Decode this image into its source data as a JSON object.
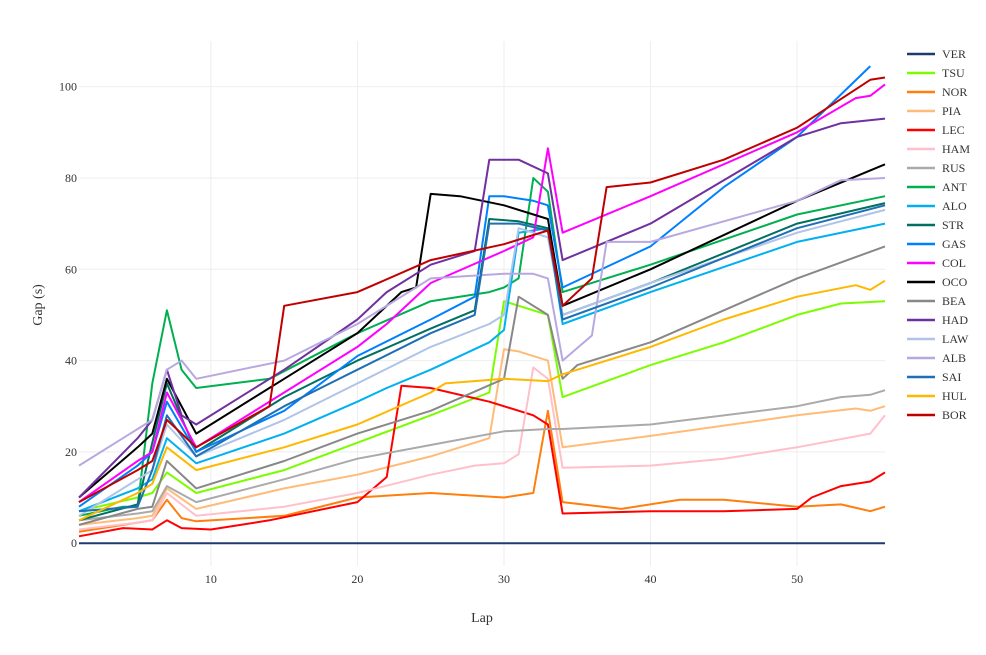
{
  "chart_data": {
    "type": "line",
    "title": "",
    "xlabel": "Lap",
    "ylabel": "Gap (s)",
    "xlim": [
      1,
      56
    ],
    "ylim": [
      -5,
      110
    ],
    "xticks": [
      10,
      20,
      30,
      40,
      50
    ],
    "yticks": [
      0,
      20,
      40,
      60,
      80,
      100
    ],
    "grid": true,
    "legend_placement": "right",
    "series": [
      {
        "name": "VER",
        "color": "#1f3a6e",
        "x": [
          1,
          56
        ],
        "y": [
          0,
          0
        ]
      },
      {
        "name": "TSU",
        "color": "#7cfc00",
        "x": [
          1,
          5,
          6,
          7,
          9,
          15,
          20,
          25,
          29,
          30,
          33,
          34,
          40,
          45,
          50,
          53,
          56
        ],
        "y": [
          7,
          10,
          11,
          15.5,
          11,
          16,
          22,
          28,
          33,
          53,
          50,
          32,
          39,
          44,
          50,
          52.5,
          53
        ]
      },
      {
        "name": "NOR",
        "color": "#ff7f0e",
        "x": [
          1,
          5,
          6,
          7,
          8,
          9,
          15,
          20,
          25,
          30,
          32,
          33,
          34,
          38,
          42,
          45,
          50,
          53,
          55,
          56
        ],
        "y": [
          2.5,
          4.5,
          5,
          9.5,
          5.5,
          4.8,
          6,
          10,
          11,
          10,
          11,
          29,
          9,
          7.5,
          9.5,
          9.5,
          8,
          8.5,
          7,
          8
        ]
      },
      {
        "name": "PIA",
        "color": "#ffbb78",
        "x": [
          1,
          5,
          6,
          7,
          9,
          15,
          20,
          25,
          29,
          30,
          31,
          33,
          34,
          40,
          50,
          54,
          55,
          56
        ],
        "y": [
          4,
          5.5,
          6,
          12,
          7.5,
          12,
          15,
          19,
          23,
          42.5,
          42,
          40,
          21,
          23.5,
          28,
          29.5,
          29,
          30
        ]
      },
      {
        "name": "LEC",
        "color": "#ff0000",
        "x": [
          1,
          4,
          6,
          7,
          8,
          10,
          14,
          20,
          22,
          23,
          25,
          29,
          32,
          33,
          34,
          40,
          45,
          50,
          51,
          53,
          55,
          56
        ],
        "y": [
          1.5,
          3.3,
          3,
          5,
          3.3,
          3,
          5,
          9,
          14.5,
          34.5,
          34,
          31,
          28,
          26,
          6.5,
          7,
          7,
          7.5,
          10,
          12.5,
          13.5,
          15.5
        ]
      },
      {
        "name": "HAM",
        "color": "#ffc0cb",
        "x": [
          1,
          5,
          6,
          7,
          9,
          15,
          20,
          25,
          28,
          30,
          31,
          32,
          33,
          34,
          40,
          45,
          50,
          55,
          56
        ],
        "y": [
          3,
          4.5,
          5,
          11,
          6,
          8,
          11,
          15,
          17,
          17.5,
          19.5,
          38.5,
          36,
          16.5,
          17,
          18.5,
          21,
          24,
          28
        ]
      },
      {
        "name": "RUS",
        "color": "#aaaaaa",
        "x": [
          1,
          5,
          6,
          7,
          9,
          15,
          20,
          25,
          30,
          33,
          34,
          40,
          50,
          53,
          55,
          56
        ],
        "y": [
          5,
          6.5,
          7,
          12.5,
          9,
          14,
          18.5,
          21.5,
          24.5,
          25,
          25,
          26,
          30,
          32,
          32.5,
          33.5
        ]
      },
      {
        "name": "ANT",
        "color": "#00b050",
        "x": [
          1,
          4,
          5,
          6,
          7,
          8,
          9,
          14,
          20,
          25,
          29,
          30,
          31,
          32,
          33,
          34,
          40,
          50,
          56
        ],
        "y": [
          6,
          8,
          8,
          35,
          51,
          38,
          34,
          36,
          46,
          53,
          55,
          56,
          58,
          80,
          77,
          55,
          61,
          72,
          76
        ]
      },
      {
        "name": "ALO",
        "color": "#00b0f0",
        "x": [
          1,
          5,
          6,
          7,
          9,
          15,
          20,
          22,
          25,
          29,
          30,
          31,
          33,
          34,
          40,
          50,
          56
        ],
        "y": [
          7,
          12,
          14,
          23,
          17.5,
          24,
          31,
          34,
          38,
          44,
          46.7,
          68,
          69,
          48,
          55,
          66,
          70
        ]
      },
      {
        "name": "STR",
        "color": "#007060",
        "x": [
          1,
          5,
          6,
          7,
          9,
          15,
          20,
          25,
          28,
          29,
          31,
          33,
          34,
          40,
          50,
          56
        ],
        "y": [
          5,
          8.5,
          22,
          35,
          20,
          32,
          40,
          47,
          51,
          71,
          70.5,
          69,
          50,
          57,
          70,
          74.5
        ]
      },
      {
        "name": "GAS",
        "color": "#0080ff",
        "x": [
          1,
          5,
          6,
          7,
          9,
          15,
          20,
          25,
          28,
          29,
          30,
          32,
          33,
          34,
          40,
          45,
          50,
          55
        ],
        "y": [
          8,
          17,
          20,
          31,
          20,
          29,
          41,
          49,
          54,
          76,
          76,
          75,
          74,
          56,
          65,
          78,
          89,
          104.5
        ]
      },
      {
        "name": "COL",
        "color": "#ff00ff",
        "x": [
          1,
          5,
          6,
          7,
          9,
          15,
          20,
          22,
          25,
          30,
          32,
          33,
          34,
          40,
          50,
          54,
          55,
          56
        ],
        "y": [
          9,
          18,
          20,
          33,
          21,
          33,
          43,
          48,
          57,
          64,
          67,
          86.5,
          68,
          76,
          90,
          97.5,
          98,
          100.5
        ]
      },
      {
        "name": "OCO",
        "color": "#000000",
        "x": [
          1,
          5,
          6,
          7,
          9,
          15,
          20,
          23,
          24,
          25,
          27,
          30,
          33,
          34,
          40,
          50,
          56
        ],
        "y": [
          10,
          21,
          24,
          36,
          24,
          36,
          46,
          55,
          56,
          76.5,
          76,
          74,
          71,
          52,
          60,
          75,
          83
        ]
      },
      {
        "name": "BEA",
        "color": "#888888",
        "x": [
          1,
          5,
          6,
          7,
          9,
          15,
          20,
          25,
          30,
          31,
          33,
          34,
          35,
          40,
          50,
          56
        ],
        "y": [
          4,
          7.5,
          8,
          18,
          12,
          18,
          24,
          29,
          36,
          54,
          50,
          36,
          39,
          44,
          58,
          65
        ]
      },
      {
        "name": "HAD",
        "color": "#7030a0",
        "x": [
          1,
          5,
          6,
          7,
          8,
          9,
          15,
          20,
          22,
          25,
          28,
          29,
          31,
          33,
          34,
          40,
          50,
          53,
          56
        ],
        "y": [
          10,
          23,
          27,
          38,
          28,
          26,
          38,
          49,
          55,
          61,
          64,
          84,
          84,
          81,
          62,
          70,
          89,
          92,
          93
        ]
      },
      {
        "name": "LAW",
        "color": "#b0c4e8",
        "x": [
          1,
          5,
          6,
          7,
          9,
          15,
          20,
          25,
          29,
          30,
          31,
          33,
          34,
          40,
          50,
          56
        ],
        "y": [
          6,
          14,
          16,
          26,
          19,
          27,
          35,
          43,
          48,
          50,
          69,
          67,
          50,
          57,
          68,
          73
        ]
      },
      {
        "name": "ALB",
        "color": "#b8a8e0",
        "x": [
          1,
          5,
          6,
          7,
          8,
          9,
          15,
          20,
          25,
          30,
          32,
          33,
          34,
          36,
          37,
          40,
          50,
          53,
          56
        ],
        "y": [
          17,
          25,
          27,
          38,
          40,
          36,
          40,
          48,
          58,
          59,
          59,
          58,
          40,
          45.5,
          66,
          66,
          75,
          79.5,
          80
        ]
      },
      {
        "name": "SAI",
        "color": "#1f6fb4",
        "x": [
          1,
          5,
          6,
          7,
          9,
          15,
          20,
          25,
          28,
          29,
          31,
          33,
          34,
          40,
          50,
          56
        ],
        "y": [
          7,
          8,
          16,
          28,
          19,
          30,
          38,
          46,
          50,
          70,
          70,
          68.5,
          49,
          56,
          69,
          74
        ]
      },
      {
        "name": "HUL",
        "color": "#ffb800",
        "x": [
          1,
          5,
          6,
          7,
          9,
          15,
          20,
          25,
          26,
          30,
          33,
          34,
          40,
          45,
          50,
          54,
          55,
          56
        ],
        "y": [
          5,
          11,
          13,
          21,
          16,
          21,
          26,
          33,
          35,
          36,
          35.5,
          37,
          43,
          49,
          54,
          56.5,
          55.5,
          57.5
        ]
      },
      {
        "name": "BOR",
        "color": "#c00000",
        "x": [
          1,
          5,
          6,
          7,
          9,
          14,
          15,
          20,
          25,
          30,
          33,
          34,
          36,
          37,
          40,
          45,
          50,
          55,
          56
        ],
        "y": [
          9,
          16,
          18,
          27,
          21,
          30,
          52,
          55,
          62,
          65.5,
          68.5,
          52,
          58,
          78,
          79,
          84,
          91,
          101.5,
          102
        ]
      }
    ]
  }
}
